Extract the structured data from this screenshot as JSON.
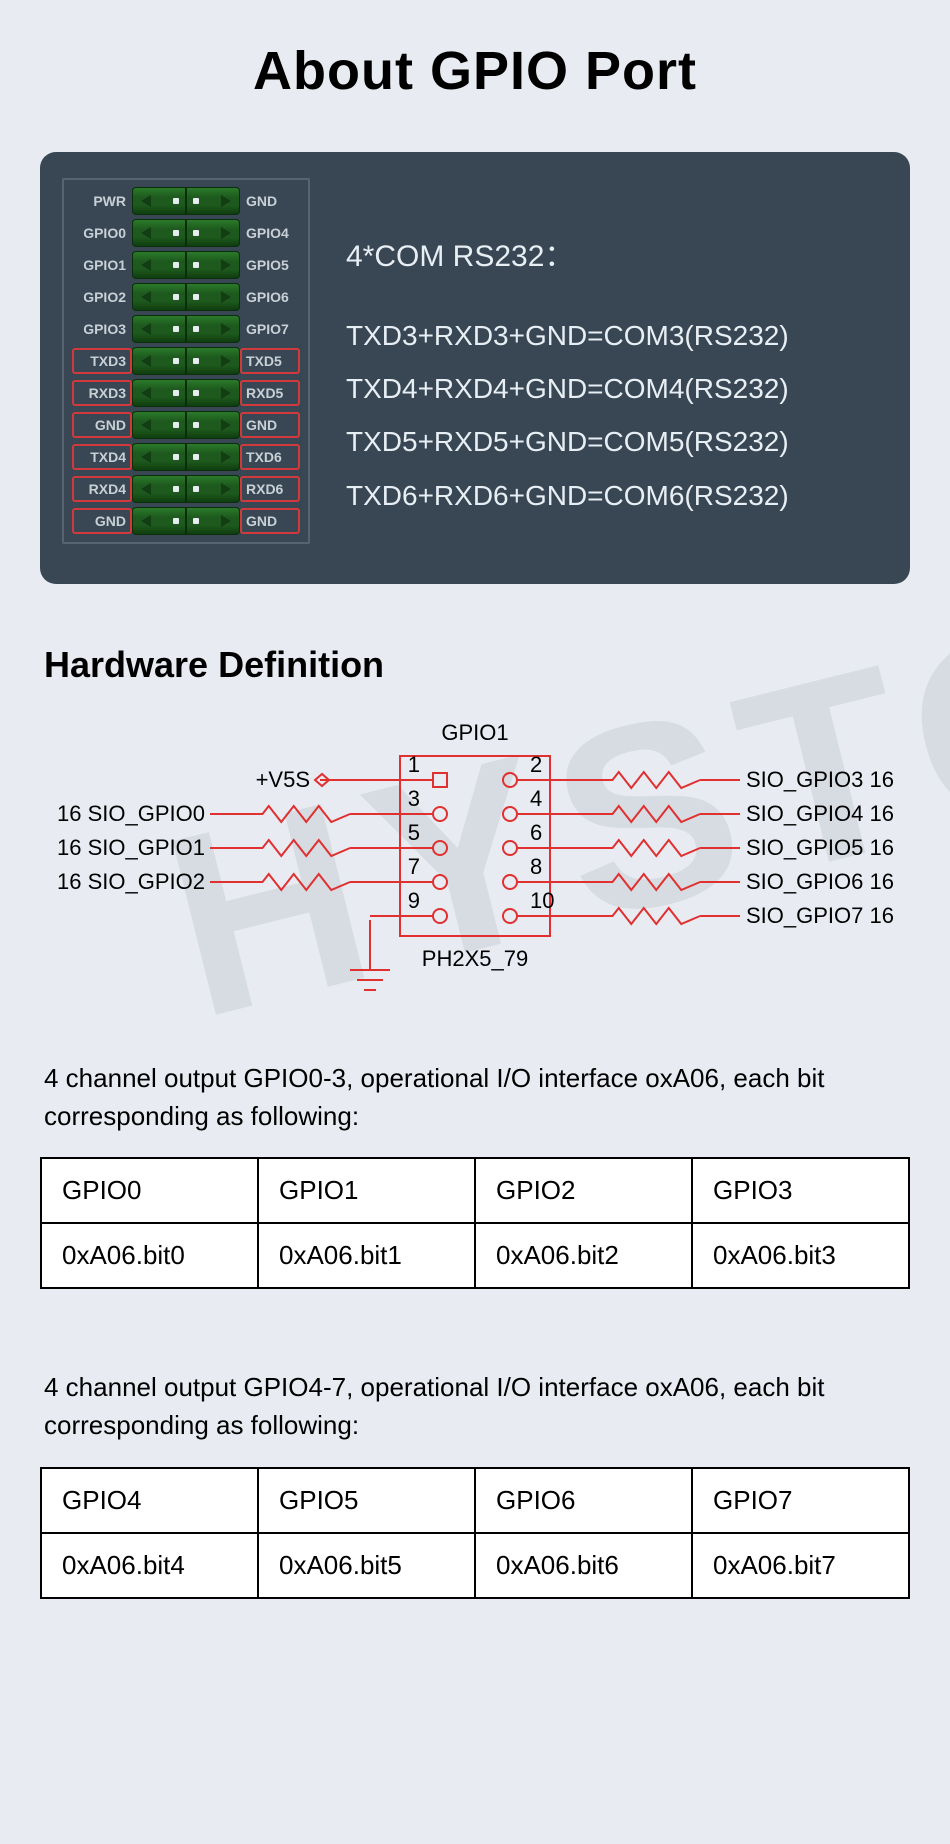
{
  "title": "About GPIO Port",
  "connector": {
    "rows": [
      {
        "left": "PWR",
        "right": "GND",
        "leftBox": false,
        "rightBox": false
      },
      {
        "left": "GPIO0",
        "right": "GPIO4",
        "leftBox": false,
        "rightBox": false
      },
      {
        "left": "GPIO1",
        "right": "GPIO5",
        "leftBox": false,
        "rightBox": false
      },
      {
        "left": "GPIO2",
        "right": "GPIO6",
        "leftBox": false,
        "rightBox": false
      },
      {
        "left": "GPIO3",
        "right": "GPIO7",
        "leftBox": false,
        "rightBox": false
      },
      {
        "left": "TXD3",
        "right": "TXD5",
        "leftBox": true,
        "rightBox": true
      },
      {
        "left": "RXD3",
        "right": "RXD5",
        "leftBox": true,
        "rightBox": true
      },
      {
        "left": "GND",
        "right": "GND",
        "leftBox": true,
        "rightBox": true
      },
      {
        "left": "TXD4",
        "right": "TXD6",
        "leftBox": true,
        "rightBox": true
      },
      {
        "left": "RXD4",
        "right": "RXD6",
        "leftBox": true,
        "rightBox": true
      },
      {
        "left": "GND",
        "right": "GND",
        "leftBox": true,
        "rightBox": true
      }
    ]
  },
  "comHeader": "4*COM RS232：",
  "comLines": [
    "TXD3+RXD3+GND=COM3(RS232)",
    "TXD4+RXD4+GND=COM4(RS232)",
    "TXD5+RXD5+GND=COM5(RS232)",
    "TXD6+RXD6+GND=COM6(RS232)"
  ],
  "hwTitle": "Hardware Definition",
  "schematic": {
    "title": "GPIO1",
    "footer": "PH2X5_79",
    "pinL": [
      "1",
      "3",
      "5",
      "7",
      "9"
    ],
    "pinR": [
      "2",
      "4",
      "6",
      "8",
      "10"
    ],
    "leftSignals": [
      "+V5S",
      "16 SIO_GPIO0",
      "16 SIO_GPIO1",
      "16 SIO_GPIO2"
    ],
    "rightSignals": [
      "SIO_GPIO3 16",
      "SIO_GPIO4 16",
      "SIO_GPIO5 16",
      "SIO_GPIO6 16",
      "SIO_GPIO7 16"
    ]
  },
  "para1": "4 channel output GPIO0-3, operational I/O interface oxA06, each bit corresponding as following:",
  "table1": {
    "headers": [
      "GPIO0",
      "GPIO1",
      "GPIO2",
      "GPIO3"
    ],
    "values": [
      "0xA06.bit0",
      "0xA06.bit1",
      "0xA06.bit2",
      "0xA06.bit3"
    ]
  },
  "para2": "4 channel output GPIO4-7, operational I/O interface oxA06, each bit corresponding as following:",
  "table2": {
    "headers": [
      "GPIO4",
      "GPIO5",
      "GPIO6",
      "GPIO7"
    ],
    "values": [
      "0xA06.bit4",
      "0xA06.bit5",
      "0xA06.bit6",
      "0xA06.bit7"
    ]
  },
  "watermark": "HYSTOU"
}
